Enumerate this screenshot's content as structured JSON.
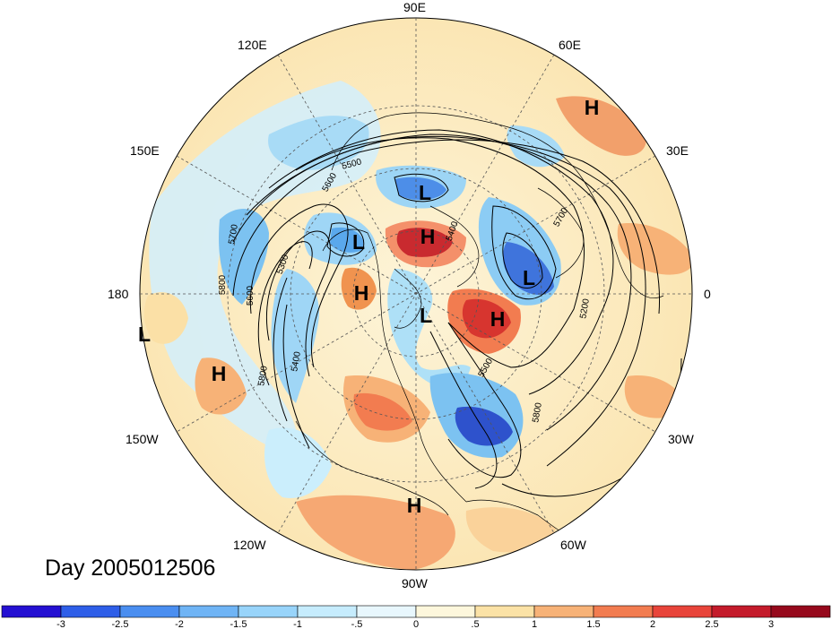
{
  "map": {
    "title": "Day 2005012506",
    "longitude_labels": [
      "90E",
      "120E",
      "60E",
      "150E",
      "30E",
      "180",
      "0",
      "150W",
      "30W",
      "120W",
      "60W",
      "90W"
    ],
    "contour_labels": [
      "5500",
      "5600",
      "5400",
      "5700",
      "5300",
      "5600",
      "5800",
      "5400",
      "5200",
      "5700",
      "5500",
      "5800",
      "5800"
    ],
    "pressure_centers": [
      {
        "type": "H",
        "name": "h-scandinavia"
      },
      {
        "type": "L",
        "name": "l-siberia"
      },
      {
        "type": "H",
        "name": "h-arctic-north"
      },
      {
        "type": "L",
        "name": "l-east-siberia"
      },
      {
        "type": "H",
        "name": "h-alaska"
      },
      {
        "type": "L",
        "name": "l-europe"
      },
      {
        "type": "L",
        "name": "l-pole"
      },
      {
        "type": "H",
        "name": "h-greenland"
      },
      {
        "type": "L",
        "name": "l-pacific-edge"
      },
      {
        "type": "H",
        "name": "h-pacific"
      },
      {
        "type": "H",
        "name": "h-mexico"
      }
    ],
    "colorbar": {
      "ticks": [
        "-3",
        "-2.5",
        "-2",
        "-1.5",
        "-1",
        "-.5",
        "0",
        ".5",
        "1",
        "1.5",
        "2",
        "2.5",
        "3"
      ],
      "colors": [
        "#2410d2",
        "#2e5ee8",
        "#4a8ef0",
        "#6fb4f5",
        "#98d4fa",
        "#c6ecfd",
        "#e8f7fd",
        "#fdf7dc",
        "#fbe2a6",
        "#f7b277",
        "#f27c50",
        "#e8443a",
        "#c41b2b",
        "#96091c"
      ]
    }
  }
}
